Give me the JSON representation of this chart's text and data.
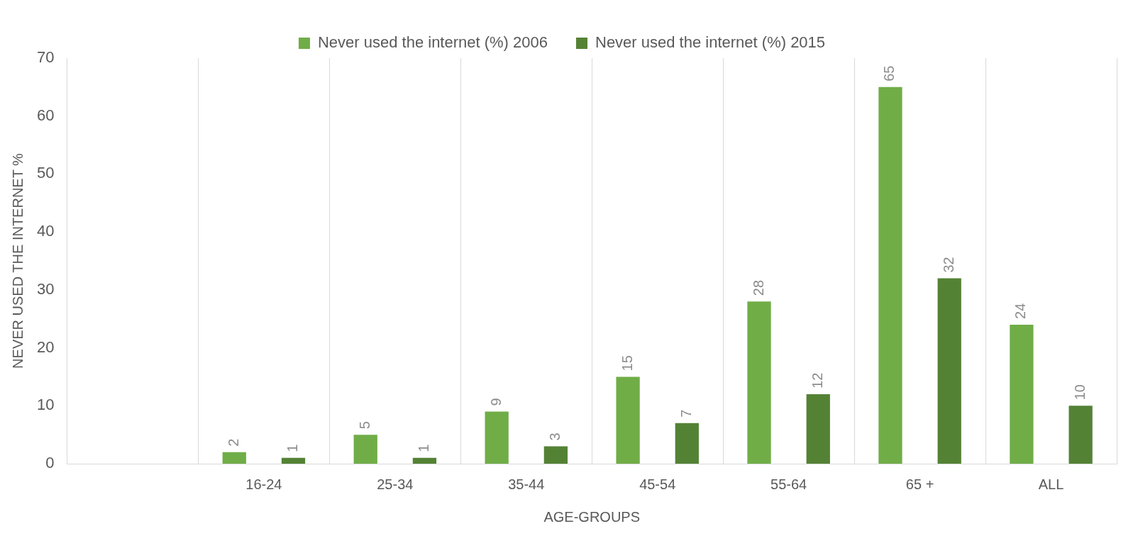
{
  "chart_data": {
    "type": "bar",
    "xlabel": "AGE-GROUPS",
    "ylabel": "NEVER USED THE INTERNET %",
    "categories": [
      null,
      "16-24",
      "25-34",
      "35-44",
      "45-54",
      "55-64",
      "65 +",
      "ALL"
    ],
    "series": [
      {
        "name": "Never used the internet (%) 2006",
        "color": "#70ad47",
        "values": [
          null,
          2,
          5,
          9,
          15,
          28,
          65,
          24
        ]
      },
      {
        "name": "Never used the internet (%) 2015",
        "color": "#548235",
        "values": [
          null,
          1,
          1,
          3,
          7,
          12,
          32,
          10
        ]
      }
    ],
    "ylim": [
      0,
      70
    ],
    "yticks": [
      0,
      10,
      20,
      30,
      40,
      50,
      60,
      70
    ],
    "grid": "x",
    "legend": "top",
    "data_labels": true
  }
}
